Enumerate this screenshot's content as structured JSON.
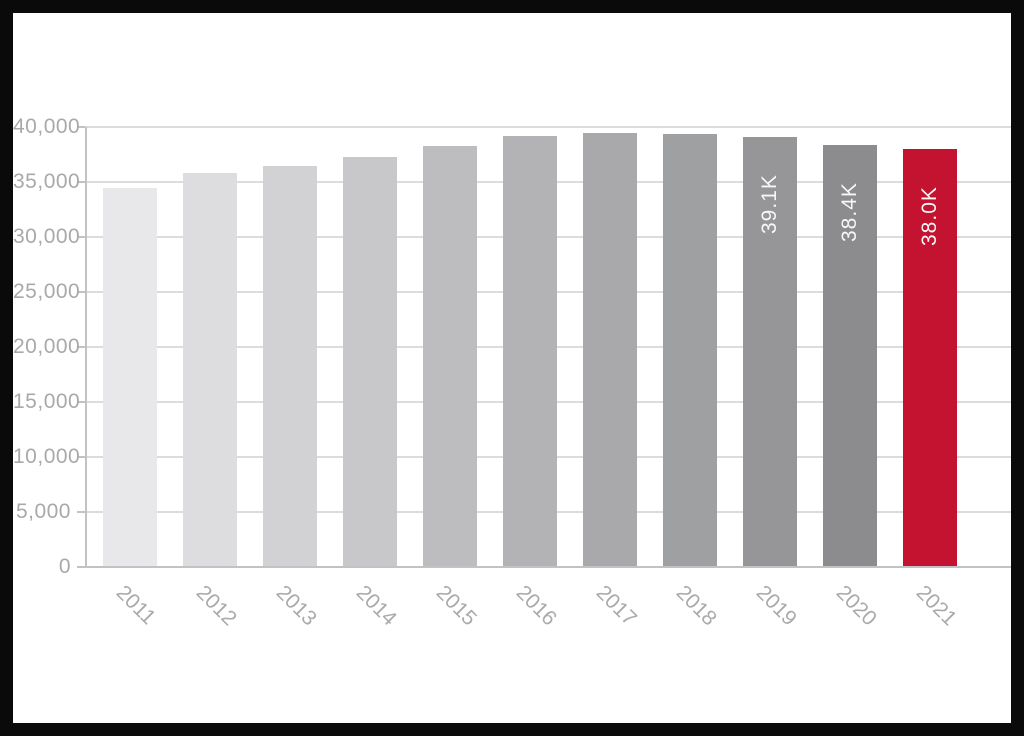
{
  "frame": {
    "border_color": "#0a0a0a",
    "page_background": "#ffffff"
  },
  "chart_data": {
    "type": "bar",
    "title": "",
    "xlabel": "",
    "ylabel": "",
    "categories": [
      "2011",
      "2012",
      "2013",
      "2014",
      "2015",
      "2016",
      "2017",
      "2018",
      "2019",
      "2020",
      "2021"
    ],
    "values": [
      34500,
      35800,
      36450,
      37250,
      38300,
      39150,
      39450,
      39400,
      39100,
      38400,
      38000
    ],
    "bar_labels": [
      "",
      "",
      "",
      "",
      "",
      "",
      "",
      "",
      "39.1K",
      "38.4K",
      "38.0K"
    ],
    "bar_colors": [
      "#e8e8ea",
      "#dddddf",
      "#d2d2d4",
      "#c8c8ca",
      "#bdbdc0",
      "#b3b3b6",
      "#a9a9ab",
      "#9fa0a2",
      "#969699",
      "#8c8c8f",
      "#c41231"
    ],
    "y_ticks": [
      {
        "value": 0,
        "label": "0"
      },
      {
        "value": 5000,
        "label": "5,000"
      },
      {
        "value": 10000,
        "label": "10,000"
      },
      {
        "value": 15000,
        "label": "15,000"
      },
      {
        "value": 20000,
        "label": "20,000"
      },
      {
        "value": 25000,
        "label": "25,000"
      },
      {
        "value": 30000,
        "label": "30,000"
      },
      {
        "value": 35000,
        "label": "35,000"
      },
      {
        "value": 40000,
        "label": "40,000"
      }
    ],
    "ylim": [
      0,
      40000
    ],
    "grid": true,
    "legend": false,
    "colors": {
      "grid_line": "#dcdcdd",
      "axis_line": "#c2c2c4",
      "tick_label": "#a9a9ac",
      "x_label": "#aaaaad",
      "bar_value_label": "#f7f7f7"
    }
  }
}
